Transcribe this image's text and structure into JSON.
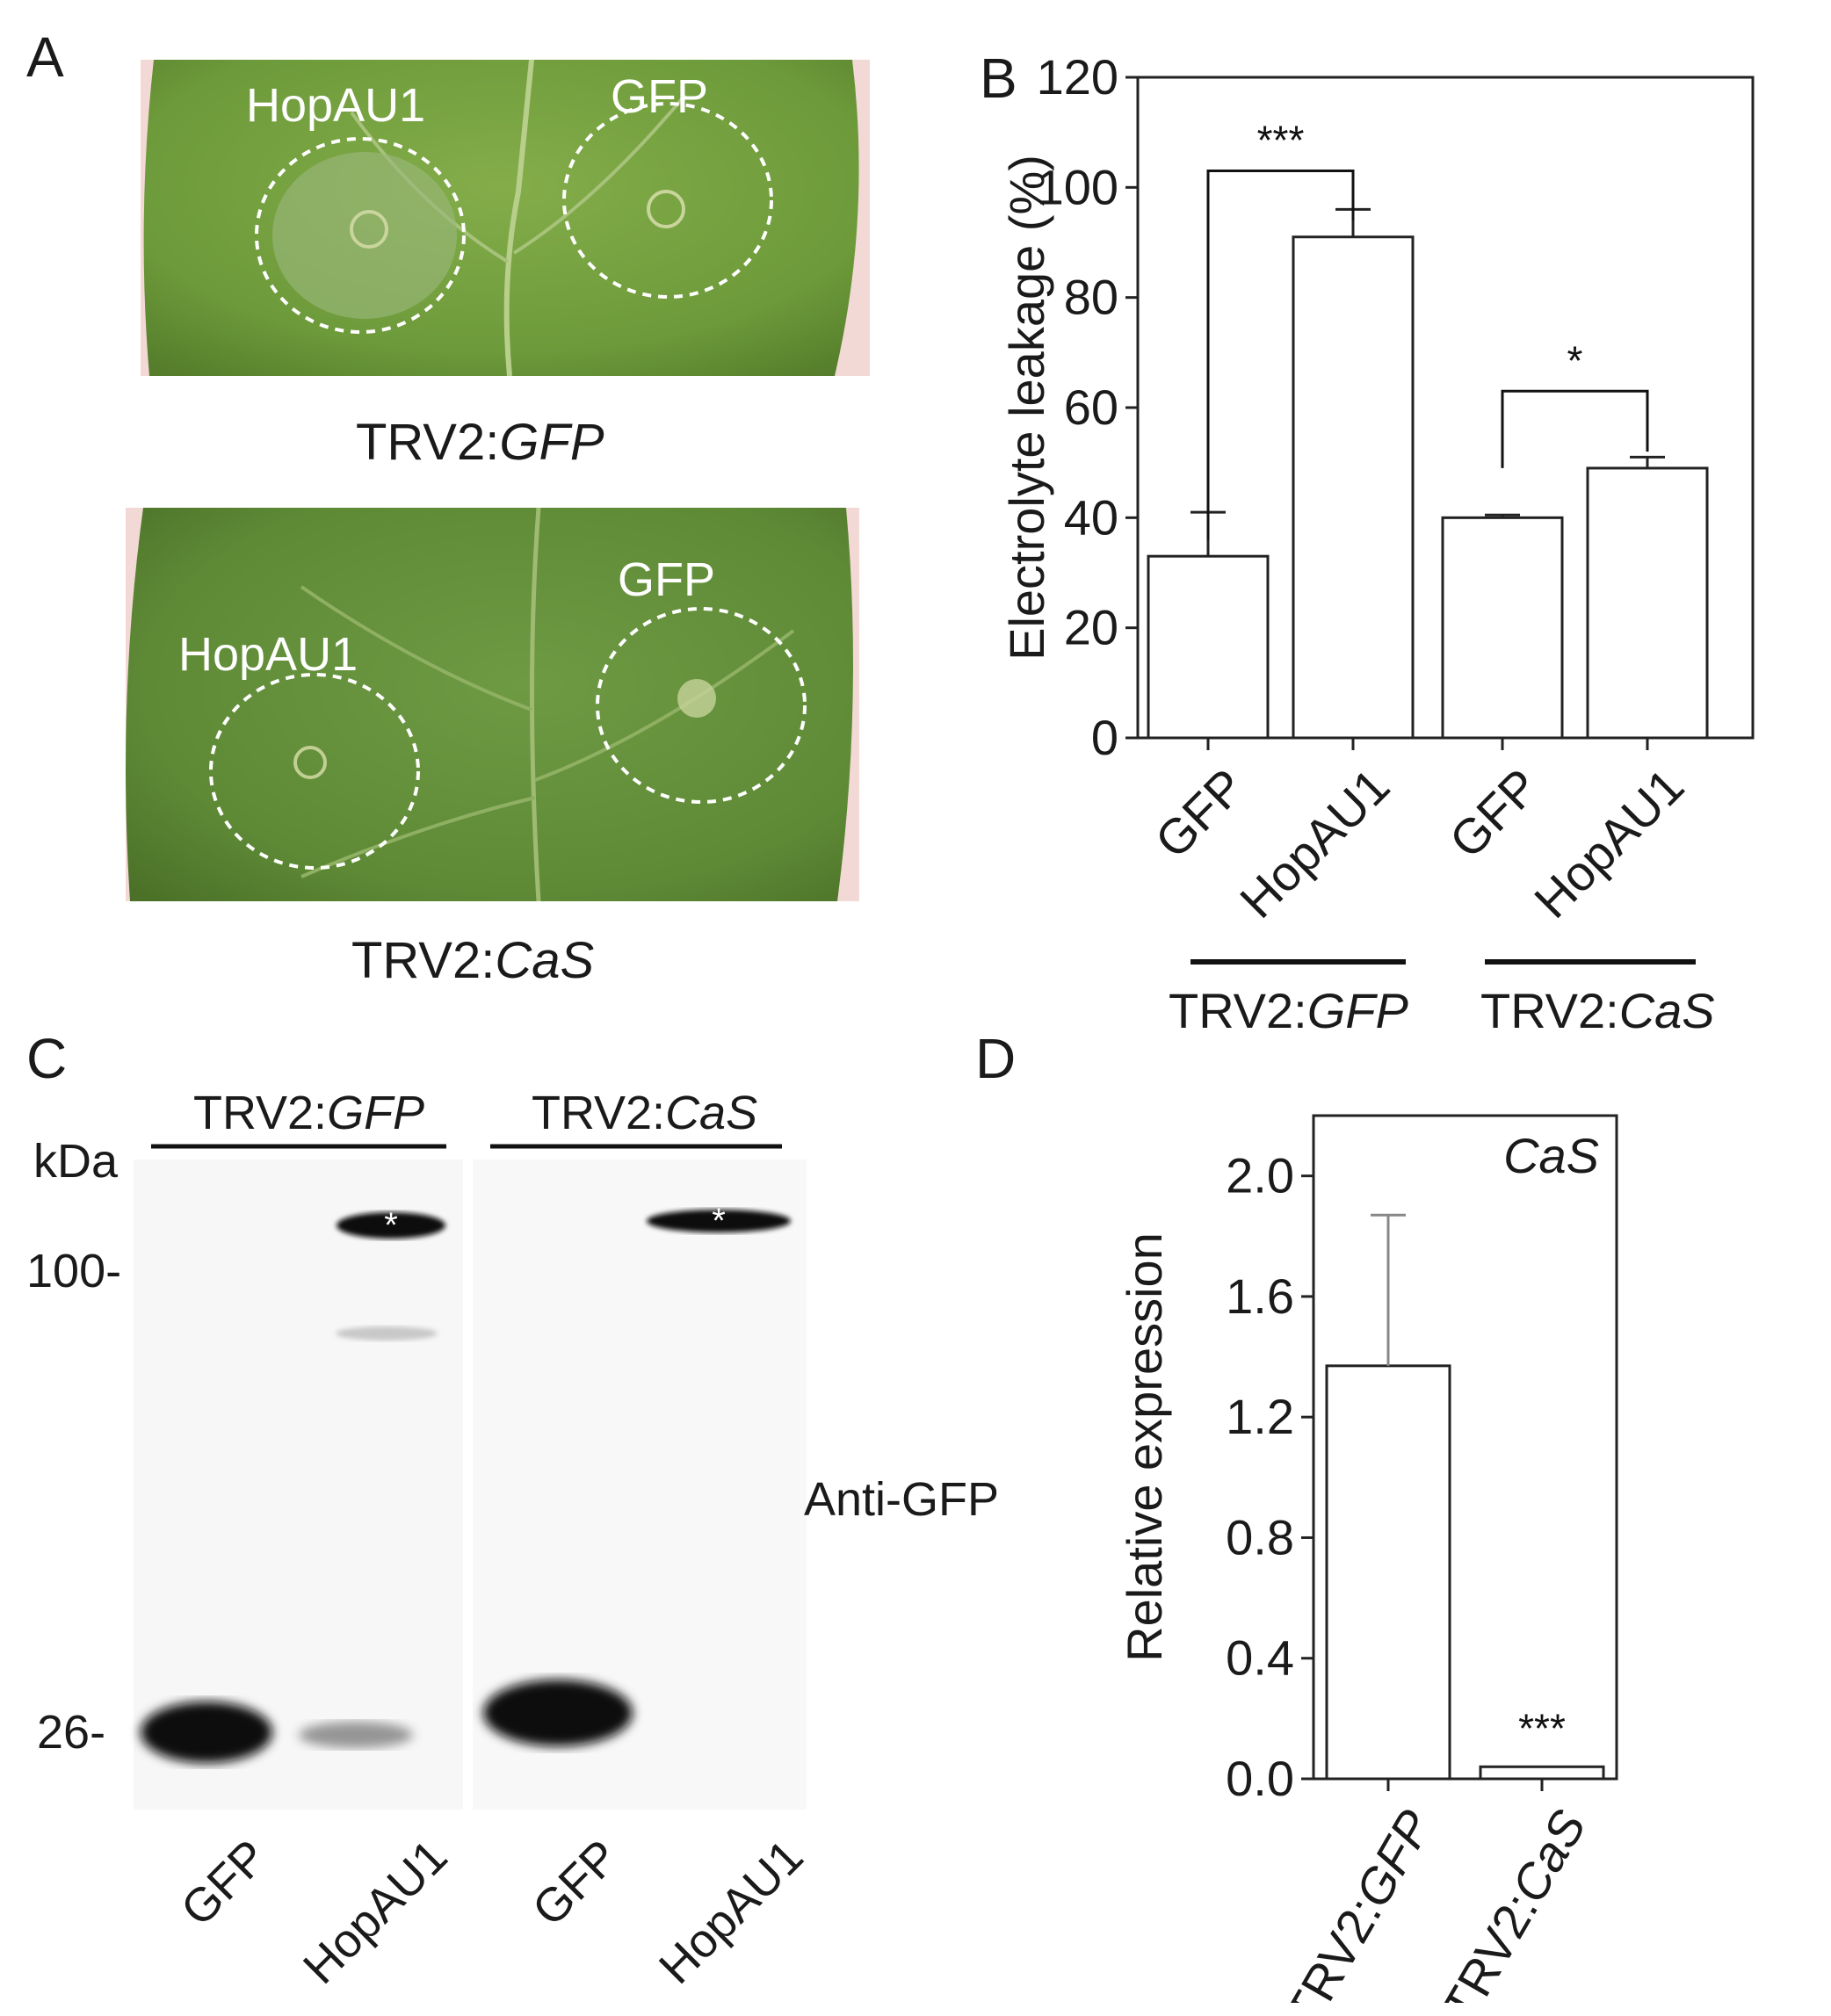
{
  "panels": {
    "a": {
      "letter": "A",
      "top_leaf": {
        "label_left": "HopAU1",
        "label_right": "GFP",
        "prefix": "TRV2:",
        "caption_italic": "GFP"
      },
      "bottom_leaf": {
        "label_left": "HopAU1",
        "label_right": "GFP",
        "prefix": "TRV2:",
        "caption_italic": "CaS"
      }
    },
    "b": {
      "letter": "B"
    },
    "c": {
      "letter": "C",
      "kda": "kDa",
      "marker_high": "100-",
      "marker_low": "26-",
      "group_left": {
        "prefix": "TRV2:",
        "italic": "GFP"
      },
      "group_right": {
        "prefix": "TRV2:",
        "italic": "CaS"
      },
      "antibody": "Anti-GFP",
      "lanes": [
        "GFP",
        "HopAU1",
        "GFP",
        "HopAU1"
      ],
      "star": "*"
    },
    "d": {
      "letter": "D"
    }
  },
  "chart_data": [
    {
      "panel": "B",
      "type": "bar",
      "categories": [
        "GFP",
        "HopAU1",
        "GFP",
        "HopAU1"
      ],
      "groups": [
        {
          "prefix": "TRV2:",
          "italic": "GFP"
        },
        {
          "prefix": "TRV2:",
          "italic": "CaS"
        }
      ],
      "values": [
        33,
        91,
        40,
        49
      ],
      "errors": [
        8,
        5,
        0.5,
        2
      ],
      "ylabel": "Electrolyte leakage (%)",
      "ylim": [
        0,
        120
      ],
      "yticks": [
        "0",
        "20",
        "40",
        "60",
        "80",
        "100",
        "120"
      ],
      "significance": [
        "***",
        "*"
      ]
    },
    {
      "panel": "D",
      "type": "bar",
      "categories": [
        {
          "prefix": "TRV2:",
          "italic": "GFP"
        },
        {
          "prefix": "TRV2:",
          "italic": "CaS"
        }
      ],
      "values": [
        1.37,
        0.04
      ],
      "errors": [
        0.5,
        0
      ],
      "ylabel": "Relative expression",
      "ylim": [
        0,
        2.2
      ],
      "yticks": [
        "0.0",
        "0.4",
        "0.8",
        "1.2",
        "1.6",
        "2.0"
      ],
      "annotation": "CaS",
      "significance": [
        "***"
      ]
    }
  ]
}
